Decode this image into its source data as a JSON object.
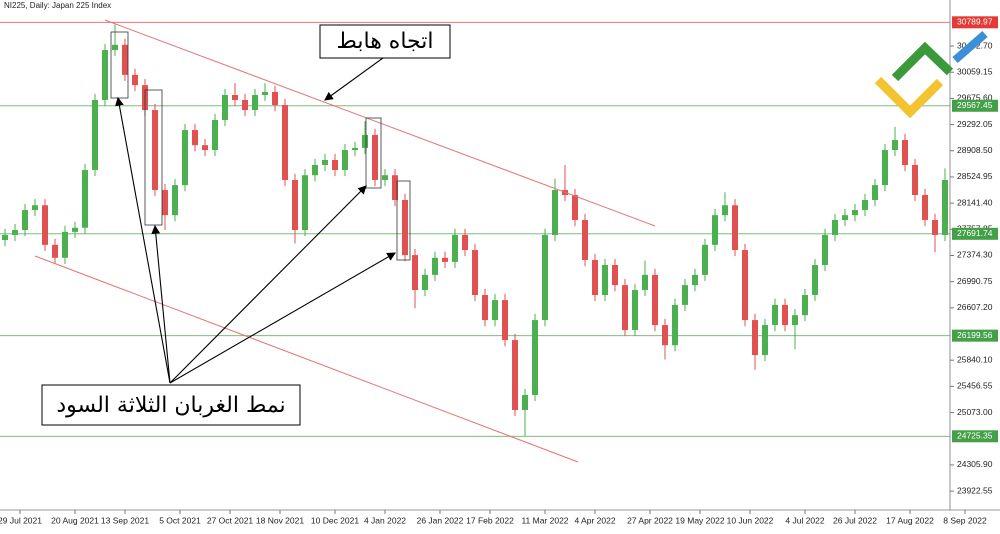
{
  "chart_data": {
    "type": "candlestick",
    "title": "NI225, Daily:  Japan 225 Index",
    "annotations": [
      "اتجاه هابط",
      "نمط الغربان الثلاثة السود"
    ],
    "up_color": "#4caf50",
    "down_color": "#e05252",
    "grid": false,
    "xlim": [
      -0.5,
      94.5
    ],
    "ylim": [
      23792,
      31117
    ],
    "xticks": [
      {
        "value": 1.5,
        "label": "29 Jul 2021"
      },
      {
        "value": 7,
        "label": "20 Aug 2021"
      },
      {
        "value": 12,
        "label": "13 Sep 2021"
      },
      {
        "value": 17.5,
        "label": "5 Oct 2021"
      },
      {
        "value": 22.5,
        "label": "27 Oct 2021"
      },
      {
        "value": 27.5,
        "label": "18 Nov 2021"
      },
      {
        "value": 33,
        "label": "10 Dec 2021"
      },
      {
        "value": 38,
        "label": "4 Jan 2022"
      },
      {
        "value": 43.5,
        "label": "26 Jan 2022"
      },
      {
        "value": 48.5,
        "label": "17 Feb 2022"
      },
      {
        "value": 54,
        "label": "11 Mar 2022"
      },
      {
        "value": 59,
        "label": "4 Apr 2022"
      },
      {
        "value": 64.5,
        "label": "27 Apr 2022"
      },
      {
        "value": 69.5,
        "label": "19 May 2022"
      },
      {
        "value": 74.5,
        "label": "10 Jun 2022"
      },
      {
        "value": 80,
        "label": "4 Jul 2022"
      },
      {
        "value": 85,
        "label": "26 Jul 2022"
      },
      {
        "value": 90.5,
        "label": "17 Aug 2022"
      },
      {
        "value": 96,
        "label": "8 Sep 2022"
      }
    ],
    "yticks": [
      {
        "value": 30442.7,
        "label": "30442.70"
      },
      30059.15,
      {
        "value": 29675.6,
        "label": "29675.60"
      },
      29292.05,
      {
        "value": 28908.5,
        "label": "28908.50"
      },
      28524.95,
      {
        "value": 28141.4,
        "label": "28141.40"
      },
      27757.85,
      {
        "value": 27374.3,
        "label": "27374.30"
      },
      26990.75,
      {
        "value": 26607.2,
        "label": "26607.20"
      },
      {
        "value": 25840.1,
        "label": "25840.10"
      },
      25456.55,
      {
        "value": 25073.0,
        "label": "25073.00"
      },
      {
        "value": 24305.9,
        "label": "24305.90"
      },
      23922.55
    ],
    "levels": [
      {
        "value": 30789.97,
        "color": "#e53935"
      },
      {
        "value": 29567.45,
        "color": "#43a047"
      },
      {
        "value": 27691.74,
        "color": "#43a047"
      },
      {
        "value": 26199.56,
        "color": "#43a047"
      },
      {
        "value": 24725.35,
        "color": "#43a047"
      }
    ],
    "open": [
      27600,
      27675,
      27747,
      28040,
      28110,
      27530,
      27340,
      27720,
      27780,
      28626,
      29652,
      30384,
      30460,
      30020,
      29870,
      29505,
      28333,
      27965,
      28405,
      29212,
      28990,
      28919,
      29359,
      29725,
      29652,
      29505,
      29725,
      29770,
      29578,
      28480,
      27747,
      28550,
      28700,
      28773,
      28626,
      28919,
      28950,
      29140,
      28480,
      28550,
      28187,
      27380,
      26868,
      27090,
      27340,
      27280,
      27675,
      27454,
      26795,
      26428,
      26721,
      26135,
      25110,
      25330,
      26428,
      27675,
      28333,
      28260,
      27894,
      27308,
      26795,
      27235,
      26940,
      26282,
      26868,
      27090,
      26355,
      26060,
      26650,
      26940,
      27090,
      27530,
      27965,
      28110,
      27454,
      26428,
      25915,
      26355,
      26650,
      26355,
      26500,
      26795,
      27235,
      27675,
      27894,
      27965,
      28040,
      28187,
      28405,
      28919,
      29066,
      28700,
      28260,
      27894,
      27675
    ],
    "high": [
      27765,
      27837,
      28130,
      28200,
      28200,
      27620,
      27810,
      27870,
      28716,
      29742,
      30474,
      30760,
      30550,
      30110,
      29960,
      29595,
      28423,
      28495,
      29302,
      29302,
      29080,
      29449,
      29815,
      29900,
      29742,
      29815,
      29900,
      29860,
      29668,
      28570,
      28640,
      28790,
      28863,
      28863,
      29009,
      29040,
      29340,
      29230,
      28640,
      28640,
      28277,
      27470,
      27180,
      27430,
      27430,
      27765,
      27765,
      27544,
      26885,
      26811,
      26811,
      26225,
      25420,
      26518,
      27765,
      28500,
      28700,
      28350,
      27984,
      27398,
      27325,
      27325,
      27030,
      26958,
      27300,
      27180,
      26445,
      26740,
      27030,
      27180,
      27620,
      28055,
      28300,
      28200,
      27544,
      26518,
      26445,
      26740,
      26740,
      26590,
      26885,
      27325,
      27765,
      27984,
      28055,
      28130,
      28277,
      28495,
      29009,
      29260,
      29156,
      28790,
      28350,
      27984,
      28650
    ],
    "low": [
      27510,
      27585,
      27657,
      27950,
      27440,
      27250,
      27250,
      27630,
      27690,
      28536,
      29562,
      30294,
      29930,
      29780,
      29415,
      28243,
      27750,
      27875,
      28315,
      28900,
      28829,
      28829,
      29269,
      29562,
      29415,
      29415,
      29635,
      29488,
      28390,
      27550,
      27657,
      28460,
      28610,
      28536,
      28536,
      28829,
      28860,
      28390,
      28390,
      28097,
      27290,
      26600,
      26778,
      27000,
      27190,
      27190,
      27364,
      26705,
      26338,
      26338,
      26045,
      25020,
      24725,
      25240,
      26338,
      27585,
      28170,
      27804,
      27218,
      26705,
      26705,
      26850,
      26192,
      26192,
      26778,
      26265,
      25850,
      25970,
      26560,
      26850,
      27000,
      27440,
      27875,
      27364,
      26338,
      25700,
      25825,
      26265,
      26265,
      26000,
      26410,
      26705,
      27145,
      27585,
      27804,
      27875,
      27950,
      28097,
      28315,
      28829,
      28610,
      28170,
      27804,
      27420,
      27585
    ],
    "close": [
      27675,
      27747,
      28040,
      28110,
      27530,
      27340,
      27720,
      27780,
      28626,
      29652,
      30384,
      30460,
      30020,
      29870,
      29505,
      28333,
      27965,
      28405,
      29212,
      28990,
      28919,
      29359,
      29725,
      29652,
      29505,
      29725,
      29770,
      29578,
      28480,
      27747,
      28550,
      28700,
      28773,
      28626,
      28919,
      28950,
      29140,
      28480,
      28550,
      28187,
      27380,
      26868,
      27090,
      27340,
      27280,
      27675,
      27454,
      26795,
      26428,
      26721,
      26135,
      25110,
      25330,
      26428,
      27675,
      28333,
      28260,
      27894,
      27308,
      26795,
      27235,
      26940,
      26282,
      26868,
      27090,
      26355,
      26060,
      26650,
      26940,
      27090,
      27530,
      27965,
      28110,
      27454,
      26428,
      25915,
      26355,
      26650,
      26355,
      26500,
      26795,
      27235,
      27675,
      27894,
      27965,
      28040,
      28187,
      28405,
      28919,
      29066,
      28700,
      28260,
      27894,
      27675,
      28480
    ]
  }
}
